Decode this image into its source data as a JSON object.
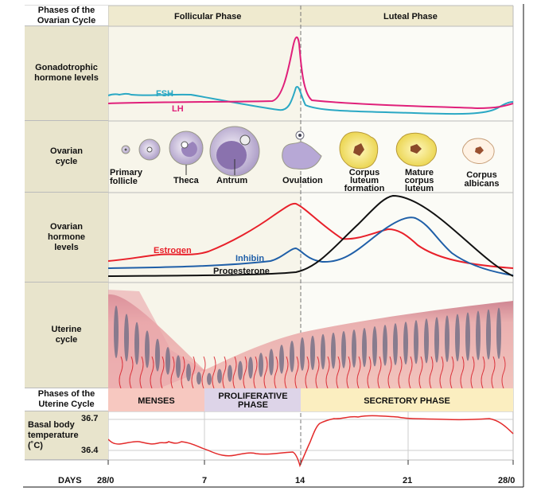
{
  "ovarian_header": {
    "label": "Phases of the Ovarian Cycle",
    "follicular": "Follicular Phase",
    "luteal": "Luteal Phase"
  },
  "rows": {
    "gonadotrophic": "Gonadotrophic hormone levels",
    "ovarian_cycle": "Ovarian cycle",
    "ovarian_hormone": "Ovarian hormone levels",
    "uterine": "Uterine cycle",
    "uterine_phases": "Phases of the Uterine Cycle",
    "bbt": "Basal body temperature (˚C)"
  },
  "gonadotrophic": {
    "fsh": "FSH",
    "lh": "LH",
    "fsh_color": "#2aa8c4",
    "lh_color": "#e0207a"
  },
  "ovarian_stages": {
    "primary": "Primary follicle",
    "theca": "Theca",
    "antrum": "Antrum",
    "ovulation": "Ovulation",
    "cl_formation": "Corpus luteum formation",
    "mature_cl": "Mature corpus luteum",
    "albicans": "Corpus albicans"
  },
  "ovarian_hormones": {
    "estrogen": "Estrogen",
    "inhibin": "Inhibin",
    "progesterone": "Progesterone",
    "estrogen_color": "#e8202a",
    "inhibin_color": "#1f5fa8",
    "progesterone_color": "#111111"
  },
  "uterine_phases": {
    "menses": "MENSES",
    "proliferative": "PROLIFERATIVE PHASE",
    "secretory": "SECRETORY PHASE"
  },
  "bbt": {
    "high": "36.7",
    "low": "36.4"
  },
  "days": {
    "label": "DAYS",
    "ticks": [
      "28/0",
      "7",
      "14",
      "21",
      "28/0"
    ]
  }
}
